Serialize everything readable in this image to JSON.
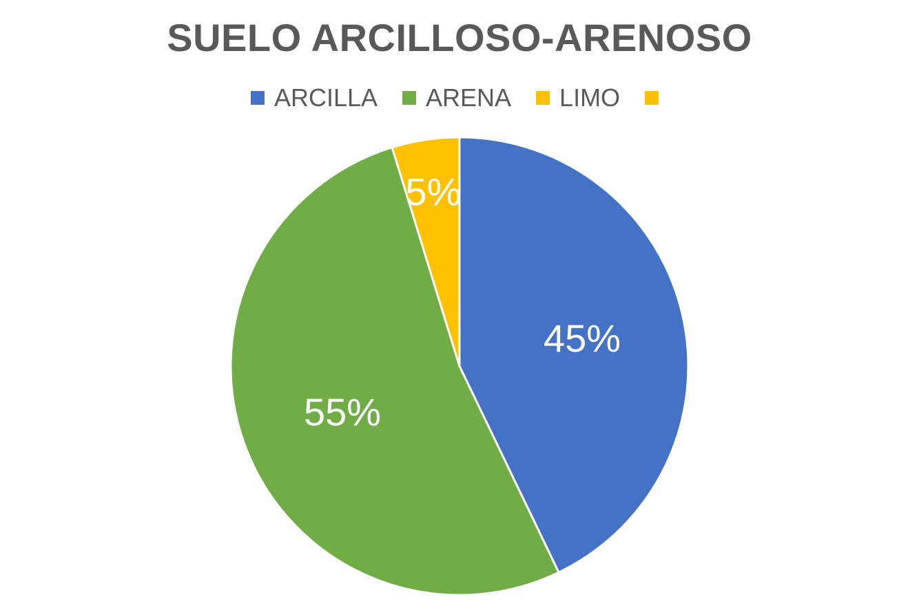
{
  "chart_data": {
    "type": "pie",
    "title": "SUELO ARCILLOSO-ARENOSO",
    "legend_position": "top",
    "categories": [
      "ARCILLA",
      "ARENA",
      "LIMO",
      ""
    ],
    "values": [
      45,
      55,
      5,
      0
    ],
    "data_labels": [
      "45%",
      "55%",
      "5%",
      ""
    ],
    "colors": [
      "#4472C4",
      "#70AD47",
      "#FFC000",
      "#FFC000"
    ]
  }
}
